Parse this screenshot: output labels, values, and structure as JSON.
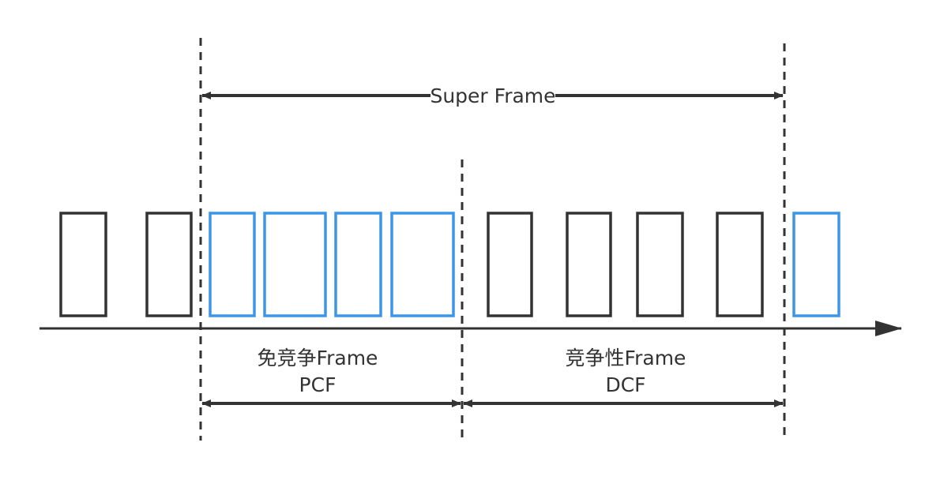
{
  "superframe": {
    "label": "Super Frame"
  },
  "pcf": {
    "label_line1": "免竞争Frame",
    "label_line2": "PCF"
  },
  "dcf": {
    "label_line1": "竞争性Frame",
    "label_line2": "DCF"
  },
  "colors": {
    "line": "#333333",
    "frame_default": "#333333",
    "frame_pcf": "#3d95e8",
    "background": "#ffffff"
  },
  "frames": [
    {
      "kind": "default"
    },
    {
      "kind": "default"
    },
    {
      "kind": "pcf"
    },
    {
      "kind": "pcf"
    },
    {
      "kind": "pcf"
    },
    {
      "kind": "pcf"
    },
    {
      "kind": "default"
    },
    {
      "kind": "default"
    },
    {
      "kind": "default"
    },
    {
      "kind": "default"
    },
    {
      "kind": "pcf"
    }
  ]
}
